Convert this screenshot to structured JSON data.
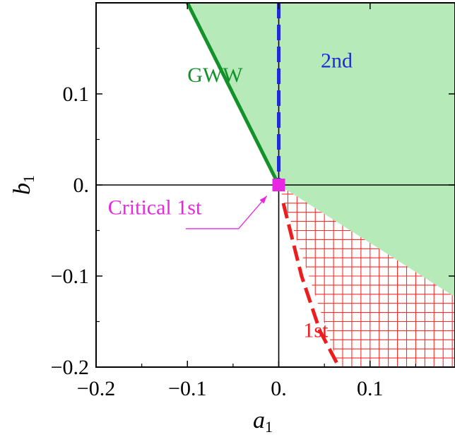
{
  "chart_data": {
    "type": "area",
    "title": "",
    "xlabel": "a",
    "xlabel_subscript": "1",
    "ylabel": "b",
    "ylabel_subscript": "1",
    "xlim": [
      -0.2,
      0.193
    ],
    "ylim": [
      -0.2,
      0.2
    ],
    "xticks": [
      -0.2,
      -0.1,
      0.0,
      0.1
    ],
    "xtick_labels": [
      "−0.2",
      "−0.1",
      "0.",
      "0.1"
    ],
    "yticks": [
      -0.2,
      -0.1,
      0.0,
      0.1
    ],
    "ytick_labels": [
      "−0.2",
      "−0.1",
      "0.",
      "0.1"
    ],
    "grid": false,
    "legend": "none",
    "reference_lines": [
      {
        "orientation": "horizontal",
        "value": 0.0,
        "color": "#000000"
      },
      {
        "orientation": "vertical",
        "value": 0.0,
        "color": "#000000"
      }
    ],
    "regions": [
      {
        "name": "green-region",
        "fill": "#b6eab8",
        "points": [
          [
            -0.1,
            0.2
          ],
          [
            0.193,
            0.2
          ],
          [
            0.193,
            -0.123
          ],
          [
            0.0,
            0.0
          ]
        ]
      },
      {
        "name": "hatched-region",
        "fill": "none",
        "hatch_color": "#ff2a2a",
        "hatch_spacing": 0.01,
        "points": [
          [
            0.0,
            0.0
          ],
          [
            0.193,
            -0.123
          ],
          [
            0.193,
            -0.2
          ],
          [
            0.066,
            -0.2
          ]
        ]
      }
    ],
    "series": [
      {
        "name": "GWW",
        "color": "#14912a",
        "style": "solid",
        "width": 5,
        "x": [
          -0.1,
          0.0
        ],
        "y": [
          0.2,
          0.0
        ],
        "label_pos": [
          -0.1,
          0.113
        ]
      },
      {
        "name": "2nd",
        "color": "#1f2bd6",
        "style": "dashed",
        "width": 5,
        "x": [
          0.0,
          0.0
        ],
        "y": [
          0.2,
          0.0
        ],
        "label_pos": [
          0.046,
          0.129
        ]
      },
      {
        "name": "1st",
        "color": "#ee1d1d",
        "style": "dashed",
        "width": 5,
        "x": [
          0.005,
          0.025,
          0.045,
          0.066
        ],
        "y": [
          -0.02,
          -0.1,
          -0.16,
          -0.2
        ],
        "label_pos": [
          0.027,
          -0.167
        ]
      }
    ],
    "annotations": [
      {
        "text": "Critical 1st",
        "color": "#e827e0",
        "x": 0.0,
        "y": 0.0,
        "marker": "square",
        "label_pos": [
          -0.187,
          -0.032
        ],
        "arrow_tail": [
          -0.044,
          -0.048
        ],
        "arrow_head": [
          -0.013,
          -0.012
        ]
      }
    ]
  }
}
